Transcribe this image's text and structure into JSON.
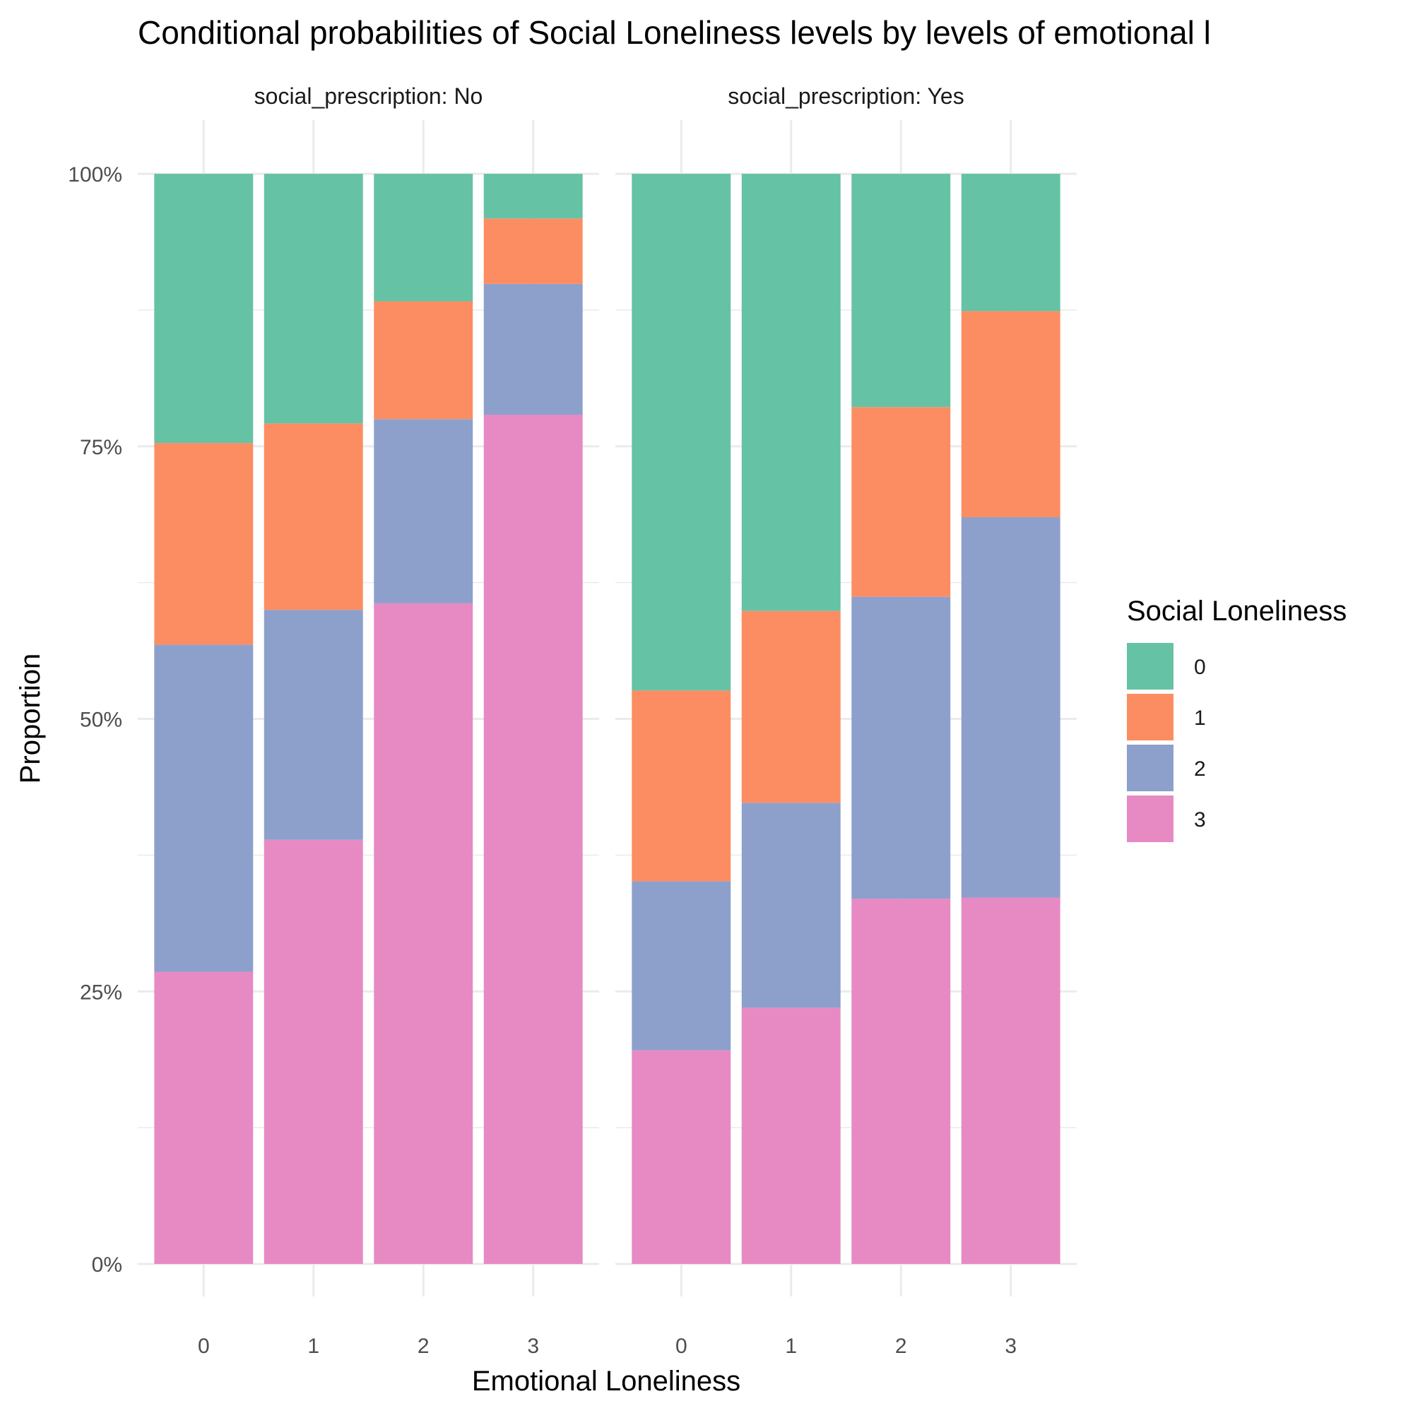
{
  "chart_data": {
    "type": "bar",
    "stacked": true,
    "title": "Conditional probabilities of Social Loneliness levels by levels of emotional l",
    "xlabel": "Emotional Loneliness",
    "ylabel": "Proportion",
    "ylim": [
      0,
      1
    ],
    "y_ticks": [
      "0%",
      "25%",
      "50%",
      "75%",
      "100%"
    ],
    "grid": true,
    "categories": [
      "0",
      "1",
      "2",
      "3"
    ],
    "legend": {
      "title": "Social Loneliness",
      "position": "right",
      "entries": [
        {
          "label": "0",
          "color": "#66c2a5"
        },
        {
          "label": "1",
          "color": "#fc8d62"
        },
        {
          "label": "2",
          "color": "#8da0cb"
        },
        {
          "label": "3",
          "color": "#e78ac3"
        }
      ]
    },
    "facets": [
      {
        "label": "social_prescription: No",
        "series": [
          {
            "name": "3",
            "values": [
              0.268,
              0.389,
              0.606,
              0.779
            ]
          },
          {
            "name": "2",
            "values": [
              0.3,
              0.211,
              0.169,
              0.12
            ]
          },
          {
            "name": "1",
            "values": [
              0.185,
              0.171,
              0.108,
              0.06
            ]
          },
          {
            "name": "0",
            "values": [
              0.247,
              0.229,
              0.117,
              0.041
            ]
          }
        ]
      },
      {
        "label": "social_prescription: Yes",
        "series": [
          {
            "name": "3",
            "values": [
              0.196,
              0.235,
              0.335,
              0.336
            ]
          },
          {
            "name": "2",
            "values": [
              0.155,
              0.188,
              0.277,
              0.349
            ]
          },
          {
            "name": "1",
            "values": [
              0.175,
              0.176,
              0.174,
              0.189
            ]
          },
          {
            "name": "0",
            "values": [
              0.474,
              0.401,
              0.214,
              0.126
            ]
          }
        ]
      }
    ]
  }
}
